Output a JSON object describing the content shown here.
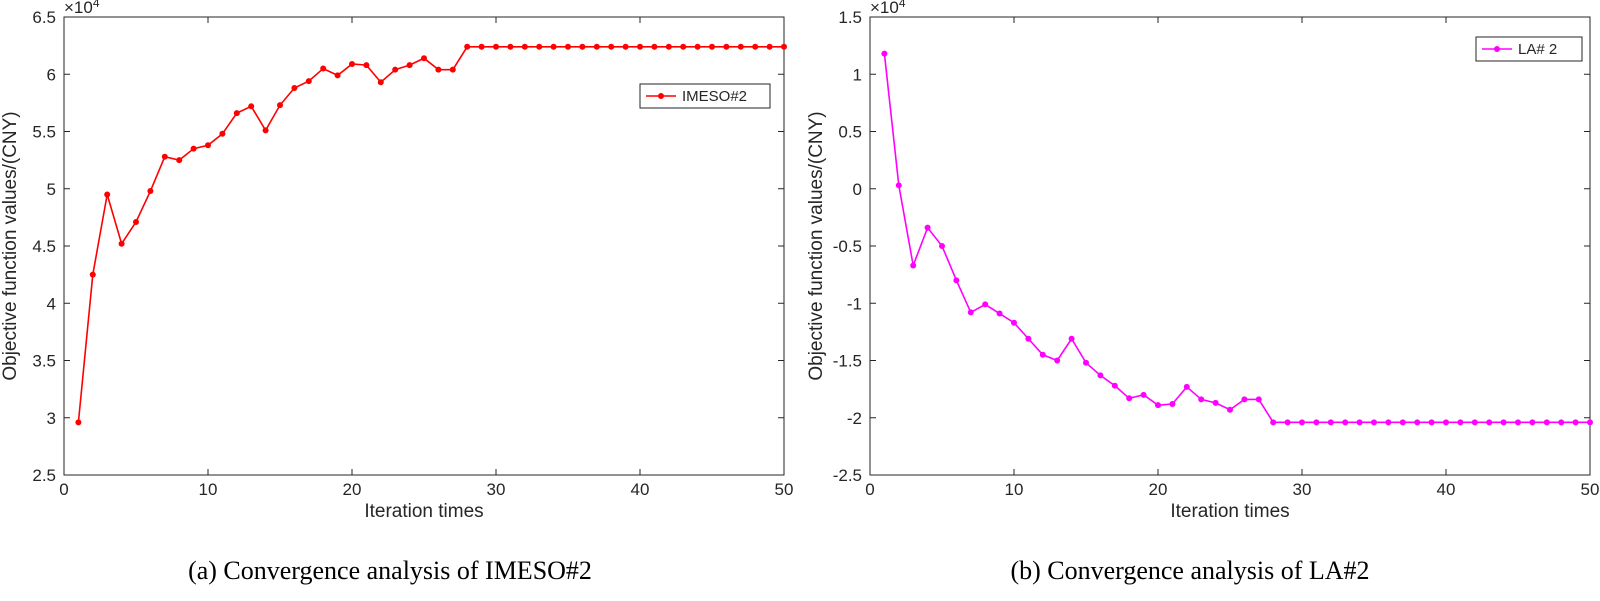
{
  "chart_data": [
    {
      "type": "line",
      "xlabel": "Iteration times",
      "ylabel": "Objective function values/(CNY)",
      "y_exponent": "×10",
      "y_exponent_power": "4",
      "xlim": [
        0,
        50
      ],
      "ylim": [
        2.5,
        6.5
      ],
      "xticks": [
        "0",
        "10",
        "20",
        "30",
        "40",
        "50"
      ],
      "yticks": [
        "2.5",
        "3",
        "3.5",
        "4",
        "4.5",
        "5",
        "5.5",
        "6",
        "6.5"
      ],
      "ytick_values": [
        2.5,
        3,
        3.5,
        4,
        4.5,
        5,
        5.5,
        6,
        6.5
      ],
      "legend_position": "top-right",
      "grid": false,
      "series": [
        {
          "name": "IMESO#2",
          "color": "#ff0000",
          "x": [
            1,
            2,
            3,
            4,
            5,
            6,
            7,
            8,
            9,
            10,
            11,
            12,
            13,
            14,
            15,
            16,
            17,
            18,
            19,
            20,
            21,
            22,
            23,
            24,
            25,
            26,
            27,
            28,
            29,
            30,
            31,
            32,
            33,
            34,
            35,
            36,
            37,
            38,
            39,
            40,
            41,
            42,
            43,
            44,
            45,
            46,
            47,
            48,
            49,
            50
          ],
          "y": [
            2.96,
            4.25,
            4.95,
            4.52,
            4.71,
            4.98,
            5.28,
            5.25,
            5.35,
            5.38,
            5.48,
            5.66,
            5.72,
            5.51,
            5.73,
            5.88,
            5.94,
            6.05,
            5.99,
            6.09,
            6.08,
            5.93,
            6.04,
            6.08,
            6.14,
            6.04,
            6.04,
            6.24,
            6.24,
            6.24,
            6.24,
            6.24,
            6.24,
            6.24,
            6.24,
            6.24,
            6.24,
            6.24,
            6.24,
            6.24,
            6.24,
            6.24,
            6.24,
            6.24,
            6.24,
            6.24,
            6.24,
            6.24,
            6.24,
            6.24
          ]
        }
      ]
    },
    {
      "type": "line",
      "xlabel": "Iteration times",
      "ylabel": "Objective function values/(CNY)",
      "y_exponent": "×10",
      "y_exponent_power": "4",
      "xlim": [
        0,
        50
      ],
      "ylim": [
        -2.5,
        1.5
      ],
      "xticks": [
        "0",
        "10",
        "20",
        "30",
        "40",
        "50"
      ],
      "yticks": [
        "-2.5",
        "-2",
        "-1.5",
        "-1",
        "-0.5",
        "0",
        "0.5",
        "1",
        "1.5"
      ],
      "ytick_values": [
        -2.5,
        -2,
        -1.5,
        -1,
        -0.5,
        0,
        0.5,
        1,
        1.5
      ],
      "legend_position": "top-right",
      "grid": false,
      "series": [
        {
          "name": "LA# 2",
          "color": "#ff00ff",
          "x": [
            1,
            2,
            3,
            4,
            5,
            6,
            7,
            8,
            9,
            10,
            11,
            12,
            13,
            14,
            15,
            16,
            17,
            18,
            19,
            20,
            21,
            22,
            23,
            24,
            25,
            26,
            27,
            28,
            29,
            30,
            31,
            32,
            33,
            34,
            35,
            36,
            37,
            38,
            39,
            40,
            41,
            42,
            43,
            44,
            45,
            46,
            47,
            48,
            49,
            50
          ],
          "y": [
            1.18,
            0.03,
            -0.67,
            -0.34,
            -0.5,
            -0.8,
            -1.08,
            -1.01,
            -1.09,
            -1.17,
            -1.31,
            -1.45,
            -1.5,
            -1.31,
            -1.52,
            -1.63,
            -1.72,
            -1.83,
            -1.8,
            -1.89,
            -1.88,
            -1.73,
            -1.84,
            -1.87,
            -1.93,
            -1.84,
            -1.84,
            -2.04,
            -2.04,
            -2.04,
            -2.04,
            -2.04,
            -2.04,
            -2.04,
            -2.04,
            -2.04,
            -2.04,
            -2.04,
            -2.04,
            -2.04,
            -2.04,
            -2.04,
            -2.04,
            -2.04,
            -2.04,
            -2.04,
            -2.04,
            -2.04,
            -2.04,
            -2.04
          ]
        }
      ]
    }
  ],
  "captions": {
    "a": "(a) Convergence analysis of IMESO#2",
    "b": "(b) Convergence analysis of LA#2"
  }
}
